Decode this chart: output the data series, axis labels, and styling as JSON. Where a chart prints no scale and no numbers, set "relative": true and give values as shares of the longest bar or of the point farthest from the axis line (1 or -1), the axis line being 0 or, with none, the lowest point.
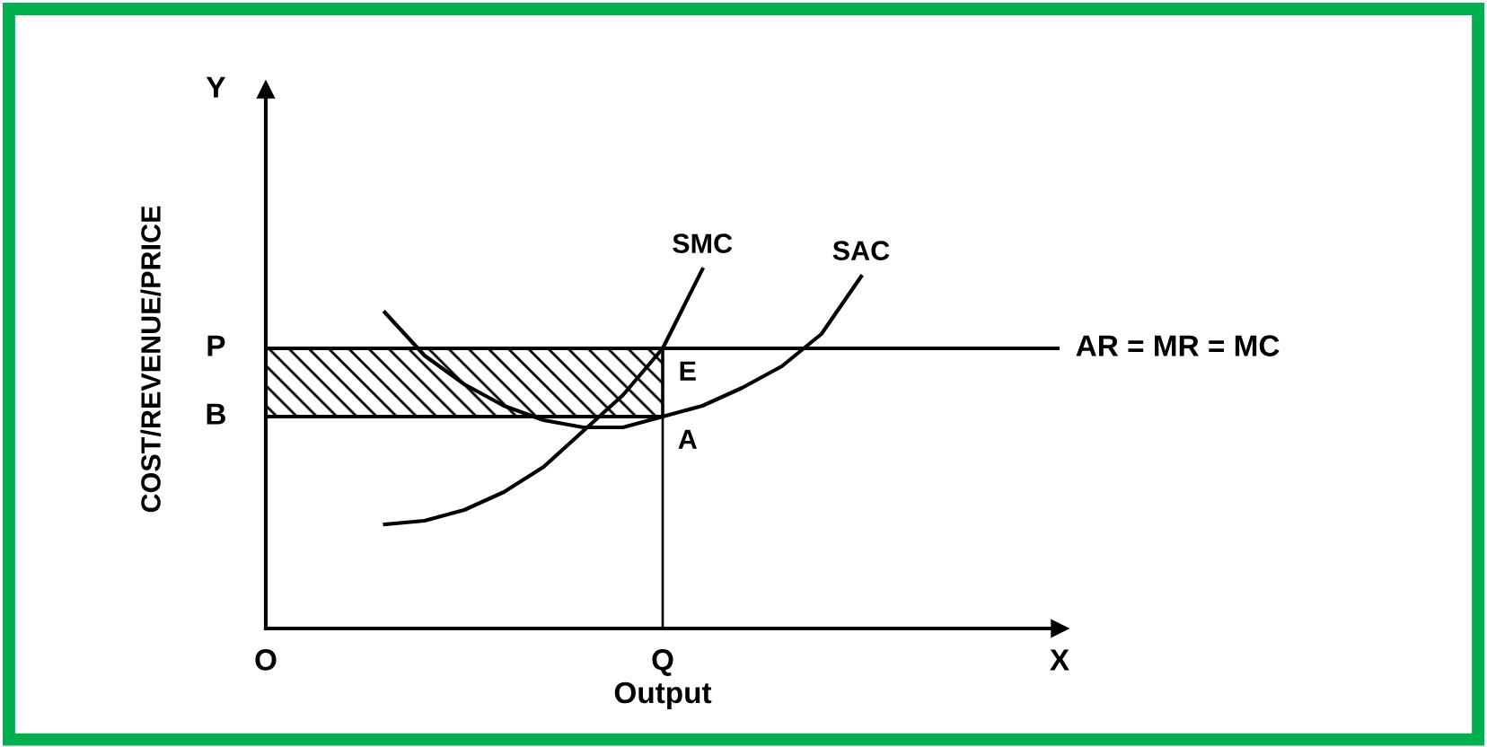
{
  "chart_data": {
    "type": "line",
    "xlabel": "Output",
    "ylabel": "COST/REVENUE/PRICE",
    "relative": true,
    "categories": [
      "O",
      null,
      null,
      null,
      null,
      null,
      null,
      null,
      null,
      null,
      "Q",
      null,
      null,
      null,
      null,
      null,
      null,
      null,
      null,
      null,
      "X"
    ],
    "series": [
      {
        "type": "line",
        "color": "#000000",
        "values": [
          0.59,
          0.59,
          0.59,
          0.59,
          0.59,
          0.59,
          0.59,
          0.59,
          0.59,
          0.59,
          0.59,
          null,
          null,
          null,
          null,
          null,
          null,
          null,
          null,
          null,
          null
        ],
        "upper": [
          0.78,
          0.78,
          0.78,
          0.78,
          0.78,
          0.78,
          0.78,
          0.78,
          0.78,
          0.78,
          0.78,
          null,
          null,
          null,
          null,
          null,
          null,
          null,
          null,
          null,
          null
        ],
        "lower": [
          0.59,
          0.59,
          0.59,
          0.59,
          0.59,
          0.59,
          0.59,
          0.59,
          0.59,
          0.59,
          0.59,
          null,
          null,
          null,
          null,
          null,
          null,
          null,
          null,
          null,
          null
        ]
      },
      {
        "type": "bar",
        "color": "#000000",
        "values": [
          null,
          null,
          null,
          null,
          null,
          null,
          null,
          null,
          null,
          null,
          0.78,
          null,
          null,
          null,
          null,
          null,
          null,
          null,
          null,
          null,
          null
        ]
      },
      {
        "name": "SMC",
        "color": "#000000",
        "values": [
          null,
          null,
          null,
          0.29,
          0.3,
          0.33,
          0.38,
          0.45,
          0.55,
          0.65,
          0.78,
          1.0,
          null,
          null,
          null,
          null,
          null,
          null,
          null,
          null,
          null
        ]
      },
      {
        "name": "SAC",
        "color": "#000000",
        "values": [
          null,
          null,
          null,
          0.88,
          0.76,
          0.68,
          0.62,
          0.58,
          0.56,
          0.56,
          0.59,
          0.62,
          0.67,
          0.73,
          0.82,
          0.98,
          null,
          null,
          null,
          null,
          null
        ]
      }
    ],
    "ref_lines": [
      {
        "axis": "y",
        "value": 0.78,
        "label": "AR = MR = MC",
        "color": "#000000"
      }
    ],
    "annotations": [
      {
        "text": "E",
        "x": "Q",
        "y": 0.78
      },
      {
        "text": "A",
        "x": "Q",
        "y": 0.59
      },
      {
        "text": "P",
        "x": "O",
        "y": 0.78
      },
      {
        "text": "B",
        "x": "O",
        "y": 0.59
      },
      "Y"
    ]
  }
}
